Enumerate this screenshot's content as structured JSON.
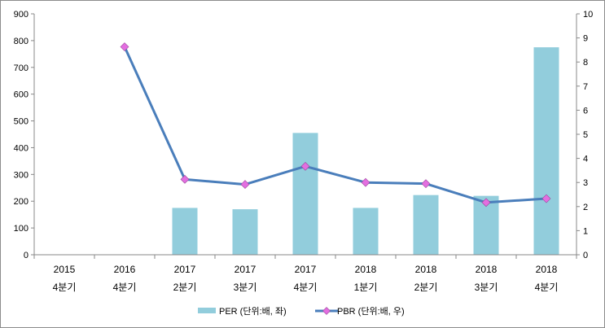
{
  "chart_data": {
    "type": "bar+line",
    "categories": [
      [
        "2015",
        "4분기"
      ],
      [
        "2016",
        "4분기"
      ],
      [
        "2017",
        "2분기"
      ],
      [
        "2017",
        "3분기"
      ],
      [
        "2017",
        "4분기"
      ],
      [
        "2018",
        "1분기"
      ],
      [
        "2018",
        "2분기"
      ],
      [
        "2018",
        "3분기"
      ],
      [
        "2018",
        "4분기"
      ]
    ],
    "y_left": {
      "min": 0,
      "max": 900,
      "step": 100
    },
    "y_right": {
      "min": 0,
      "max": 10,
      "step": 1
    },
    "grid": false,
    "legend_position": "bottom",
    "series": [
      {
        "name": "PER (단위:배, 좌)",
        "type": "bar",
        "axis": "left",
        "color": "#92cddc",
        "values": [
          null,
          null,
          175,
          170,
          455,
          175,
          223,
          220,
          775
        ]
      },
      {
        "name": "PBR (단위:배, 우)",
        "type": "line",
        "axis": "right",
        "color": "#4a7ebb",
        "marker_color": "#e36ee0",
        "values": [
          null,
          8.63,
          3.13,
          2.92,
          3.67,
          3.0,
          2.95,
          2.17,
          2.33
        ]
      }
    ]
  }
}
